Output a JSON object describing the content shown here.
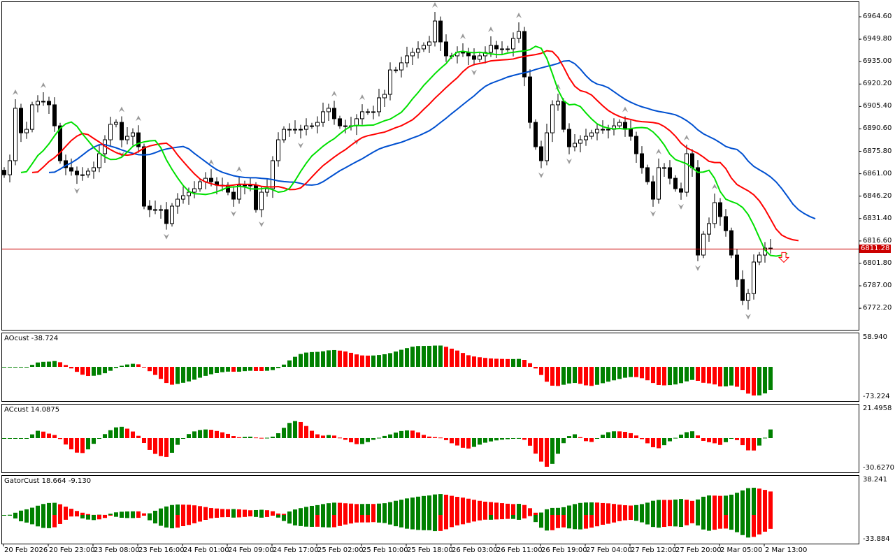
{
  "chart_data": {
    "type": "candlestick",
    "timeframe_bars": "hourly",
    "x_tick_labels": [
      "20 Feb 2026",
      "20 Feb 23:00",
      "23 Feb 08:00",
      "23 Feb 16:00",
      "24 Feb 01:00",
      "24 Feb 09:00",
      "24 Feb 17:00",
      "25 Feb 02:00",
      "25 Feb 10:00",
      "25 Feb 18:00",
      "26 Feb 03:00",
      "26 Feb 11:00",
      "26 Feb 19:00",
      "27 Feb 04:00",
      "27 Feb 12:00",
      "27 Feb 20:00",
      "2 Mar 05:00",
      "2 Mar 13:00"
    ],
    "price_ticks": [
      "6964.60",
      "6949.80",
      "6935.00",
      "6920.20",
      "6905.40",
      "6890.60",
      "6875.80",
      "6861.00",
      "6846.20",
      "6831.40",
      "6816.60",
      "6801.80",
      "6787.00",
      "6772.20"
    ],
    "ylim": [
      6764.0,
      6966.0
    ],
    "current_price": "6811.28",
    "close": [
      6860.3,
      6869.6,
      6904.2,
      6888.0,
      6890.3,
      6906.5,
      6908.8,
      6908.8,
      6906.5,
      6892.6,
      6869.6,
      6865.0,
      6862.7,
      6860.3,
      6860.3,
      6862.7,
      6865.0,
      6874.2,
      6883.4,
      6893.6,
      6894.9,
      6883.4,
      6885.7,
      6888.0,
      6878.8,
      6839.6,
      6837.3,
      6837.3,
      6837.3,
      6828.1,
      6839.6,
      6844.2,
      6846.5,
      6848.8,
      6851.1,
      6855.7,
      6858.0,
      6855.7,
      6853.4,
      6853.4,
      6848.8,
      6844.2,
      6853.4,
      6853.4,
      6853.4,
      6837.3,
      6848.8,
      6851.1,
      6869.6,
      6883.4,
      6890.3,
      6890.3,
      6890.3,
      6890.3,
      6892.6,
      6892.6,
      6894.9,
      6901.9,
      6904.2,
      6897.3,
      6892.6,
      6892.6,
      6892.6,
      6897.3,
      6901.9,
      6901.9,
      6901.9,
      6911.1,
      6913.4,
      6929.5,
      6929.5,
      6934.2,
      6938.8,
      6941.1,
      6943.4,
      6945.7,
      6948.0,
      6961.8,
      6948.0,
      6938.8,
      6938.8,
      6941.1,
      6941.1,
      6938.8,
      6936.5,
      6938.8,
      6941.1,
      6945.7,
      6943.4,
      6943.4,
      6943.4,
      6950.3,
      6954.9,
      6924.9,
      6894.9,
      6878.8,
      6869.6,
      6888.0,
      6906.5,
      6908.8,
      6890.3,
      6878.8,
      6881.1,
      6883.4,
      6885.7,
      6888.0,
      6890.3,
      6890.3,
      6890.3,
      6892.6,
      6894.9,
      6890.3,
      6885.7,
      6874.2,
      6865.0,
      6855.7,
      6844.2,
      6865.0,
      6865.0,
      6858.0,
      6851.1,
      6848.8,
      6874.2,
      6865.0,
      6807.3,
      6821.1,
      6828.1,
      6841.9,
      6832.7,
      6823.4,
      6807.3,
      6791.2,
      6777.3,
      6781.9,
      6802.7,
      6807.3,
      6811.9,
      6811.3
    ],
    "colors": {
      "bull": "#ffffff",
      "bear": "#000000",
      "jaw": "#0050d0",
      "teeth": "#ff0000",
      "lips": "#00e000",
      "up_bar": "#008000",
      "down_bar": "#ff0000",
      "price_line": "#cc0000"
    },
    "indicators": [
      {
        "title": "AOcust -38.724",
        "ylim_labels": [
          "58.940",
          "-73.224"
        ]
      },
      {
        "title": "ACcust 14.0875",
        "ylim_labels": [
          "21.4958",
          "-30.6270"
        ]
      },
      {
        "title": "GatorCust 18.664 -9.130",
        "ylim_labels": [
          "38.241",
          "-33.884"
        ]
      }
    ]
  }
}
